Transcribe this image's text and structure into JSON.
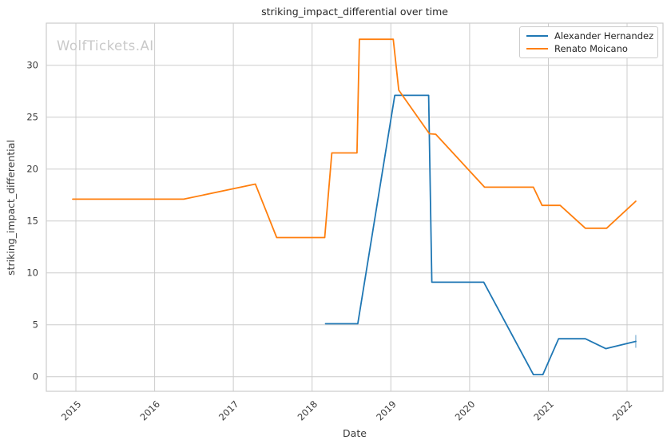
{
  "figure": {
    "watermark": "WolfTickets.AI"
  },
  "chart_data": {
    "type": "line",
    "title": "striking_impact_differential over time",
    "xlabel": "Date",
    "ylabel": "striking_impact_differential",
    "grid": true,
    "legend_position": "upper right",
    "xlim": [
      2014.625,
      2022.456
    ],
    "ylim": [
      -1.41,
      34.05
    ],
    "x_ticks": {
      "values": [
        2015,
        2016,
        2017,
        2018,
        2019,
        2020,
        2021,
        2022
      ],
      "labels": [
        "2015",
        "2016",
        "2017",
        "2018",
        "2019",
        "2020",
        "2021",
        "2022"
      ]
    },
    "y_ticks": {
      "values": [
        0,
        5,
        10,
        15,
        20,
        25,
        30
      ],
      "labels": [
        "0",
        "5",
        "10",
        "15",
        "20",
        "25",
        "30"
      ]
    },
    "colors": {
      "grid": "#cccccc",
      "spine": "#cccccc",
      "title_text": "#262626",
      "tick_text": "#3b3b3b",
      "watermark": "#c9c9c9",
      "series_blue": "#1f77b4",
      "series_orange": "#ff7f0e"
    },
    "series": [
      {
        "name": "Alexander Hernandez",
        "color": "#1f77b4",
        "end_tick": true,
        "points": [
          [
            2018.17,
            5.1
          ],
          [
            2018.58,
            5.1
          ],
          [
            2019.05,
            27.1
          ],
          [
            2019.48,
            27.1
          ],
          [
            2019.52,
            9.1
          ],
          [
            2020.18,
            9.1
          ],
          [
            2020.81,
            0.2
          ],
          [
            2020.93,
            0.2
          ],
          [
            2021.13,
            3.65
          ],
          [
            2021.47,
            3.65
          ],
          [
            2021.73,
            2.7
          ],
          [
            2022.11,
            3.4
          ]
        ]
      },
      {
        "name": "Renato Moicano",
        "color": "#ff7f0e",
        "end_tick": false,
        "points": [
          [
            2014.96,
            17.1
          ],
          [
            2016.37,
            17.1
          ],
          [
            2017.28,
            18.55
          ],
          [
            2017.55,
            13.4
          ],
          [
            2018.16,
            13.4
          ],
          [
            2018.25,
            21.55
          ],
          [
            2018.57,
            21.55
          ],
          [
            2018.6,
            32.5
          ],
          [
            2019.03,
            32.5
          ],
          [
            2019.1,
            27.6
          ],
          [
            2019.49,
            23.4
          ],
          [
            2019.57,
            23.35
          ],
          [
            2020.19,
            18.25
          ],
          [
            2020.81,
            18.25
          ],
          [
            2020.92,
            16.5
          ],
          [
            2021.15,
            16.5
          ],
          [
            2021.47,
            14.3
          ],
          [
            2021.74,
            14.3
          ],
          [
            2022.11,
            16.9
          ]
        ]
      }
    ]
  }
}
